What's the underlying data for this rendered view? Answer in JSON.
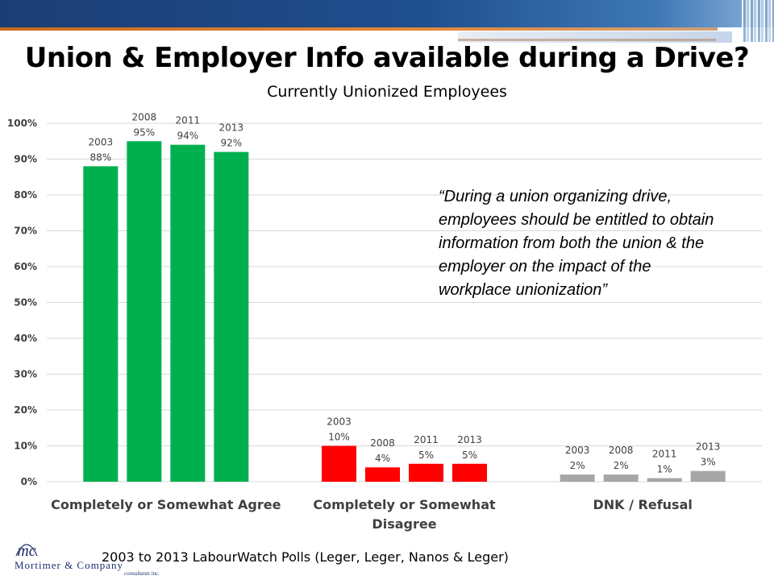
{
  "title": "Union & Employer Info available during a Drive?",
  "subtitle": "Currently Unionized Employees",
  "quote": "“During a union organizing drive, employees should be entitled to obtain information from both the union & the employer on the impact of the workplace unionization”",
  "source": "2003 to 2013 LabourWatch Polls (Leger, Leger, Nanos & Leger)",
  "logo": {
    "name": "Mortimer & Company",
    "sub": "consultants inc.",
    "mark": "mc"
  },
  "colors": {
    "agree": "#00b04f",
    "disagree": "#ff0000",
    "dnk": "#a6a6a6",
    "grid": "#d9d9d9"
  },
  "chart_data": {
    "type": "bar",
    "title": "Currently Unionized Employees",
    "ylim": [
      0,
      100
    ],
    "yticks": [
      "0%",
      "10%",
      "20%",
      "30%",
      "40%",
      "50%",
      "60%",
      "70%",
      "80%",
      "90%",
      "100%"
    ],
    "grid": true,
    "categories": [
      {
        "label_lines": [
          "Completely or Somewhat Agree"
        ],
        "color": "#00b04f"
      },
      {
        "label_lines": [
          "Completely or Somewhat",
          "Disagree"
        ],
        "color": "#ff0000"
      },
      {
        "label_lines": [
          "DNK / Refusal"
        ],
        "color": "#a6a6a6"
      }
    ],
    "years": [
      "2003",
      "2008",
      "2011",
      "2013"
    ],
    "values": [
      [
        88,
        95,
        94,
        92
      ],
      [
        10,
        4,
        5,
        5
      ],
      [
        2,
        2,
        1,
        3
      ]
    ],
    "value_labels": [
      [
        "88%",
        "95%",
        "94%",
        "92%"
      ],
      [
        "10%",
        "4%",
        "5%",
        "5%"
      ],
      [
        "2%",
        "2%",
        "1%",
        "3%"
      ]
    ]
  }
}
